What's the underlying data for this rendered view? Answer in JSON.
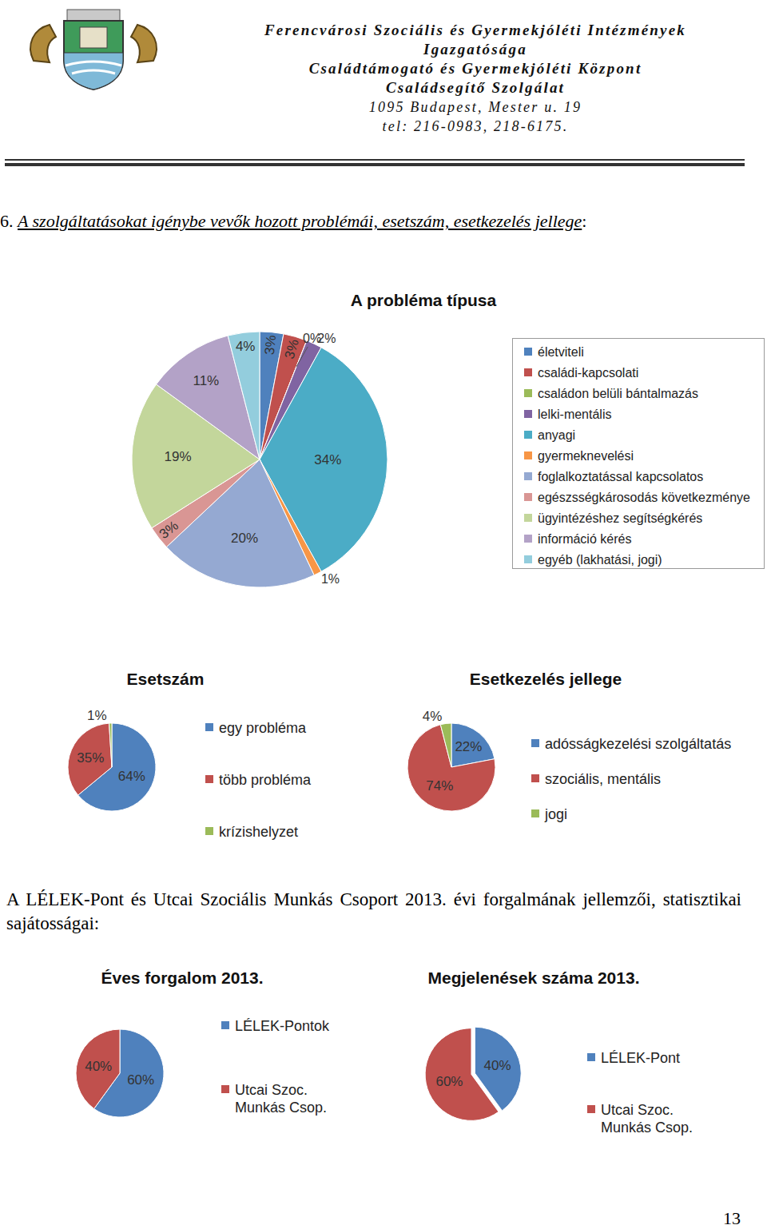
{
  "header": {
    "organization": [
      "Ferencvárosi Szociális és Gyermekjóléti Intézmények",
      "Igazgatósága",
      "Családtámogató és Gyermekjóléti Központ",
      "Családsegítő Szolgálat"
    ],
    "contact": [
      "1095 Budapest, Mester u. 19",
      "tel: 216-0983, 218-6175."
    ]
  },
  "section_heading": {
    "number": "6.",
    "text": "A szolgáltatásokat igénybe vevők hozott problémái, esetszám, esetkezelés jellege",
    "suffix": ":"
  },
  "paragraph": "A LÉLEK-Pont és Utcai Szociális Munkás Csoport 2013. évi forgalmának jellemzői, statisztikai sajátosságai:",
  "page_number": 13,
  "chart_data": [
    {
      "type": "pie",
      "title": "A probléma típusa",
      "categories": [
        "életviteli",
        "családi-kapcsolati",
        "családon belüli bántalmazás",
        "lelki-mentális",
        "anyagi",
        "gyermeknevelési",
        "foglalkoztatással kapcsolatos",
        "egészsségkárosodás következménye",
        "ügyintézéshez segítségkérés",
        "információ kérés",
        "egyéb (lakhatási, jogi)"
      ],
      "values": [
        3,
        3,
        0,
        2,
        34,
        1,
        20,
        3,
        19,
        11,
        4
      ],
      "value_labels": [
        "3%",
        "3%",
        "0%",
        "2%",
        "34%",
        "1%",
        "20%",
        "3%",
        "19%",
        "11%",
        "4%"
      ],
      "colors": [
        "#4F81BD",
        "#C0504D",
        "#9BBB59",
        "#8064A2",
        "#4BACC6",
        "#F79646",
        "#95A9D2",
        "#D99694",
        "#C3D69B",
        "#B3A2C7",
        "#93CDDD"
      ],
      "data_labels": true
    },
    {
      "type": "pie",
      "title": "Esetszám",
      "categories": [
        "egy probléma",
        "több probléma",
        "krízishelyzet"
      ],
      "values": [
        64,
        35,
        1
      ],
      "value_labels": [
        "64%",
        "35%",
        "1%"
      ],
      "colors": [
        "#4F81BD",
        "#C0504D",
        "#9BBB59"
      ],
      "data_labels": true
    },
    {
      "type": "pie",
      "title": "Esetkezelés jellege",
      "categories": [
        "adósságkezelési szolgáltatás",
        "szociális, mentális",
        "jogi"
      ],
      "values": [
        22,
        74,
        4
      ],
      "value_labels": [
        "22%",
        "74%",
        "4%"
      ],
      "colors": [
        "#4F81BD",
        "#C0504D",
        "#9BBB59"
      ],
      "data_labels": true
    },
    {
      "type": "pie",
      "title": "Éves forgalom 2013.",
      "categories": [
        "LÉLEK-Pontok",
        "Utcai Szoc. Munkás Csop."
      ],
      "values": [
        60,
        40
      ],
      "value_labels": [
        "60%",
        "40%"
      ],
      "colors": [
        "#4F81BD",
        "#C0504D"
      ],
      "data_labels": true
    },
    {
      "type": "pie",
      "title": "Megjelenések száma 2013.",
      "categories": [
        "LÉLEK-Pont",
        "Utcai Szoc. Munkás Csop."
      ],
      "values": [
        40,
        60
      ],
      "value_labels": [
        "40%",
        "60%"
      ],
      "colors": [
        "#4F81BD",
        "#C0504D"
      ],
      "data_labels": true
    }
  ]
}
